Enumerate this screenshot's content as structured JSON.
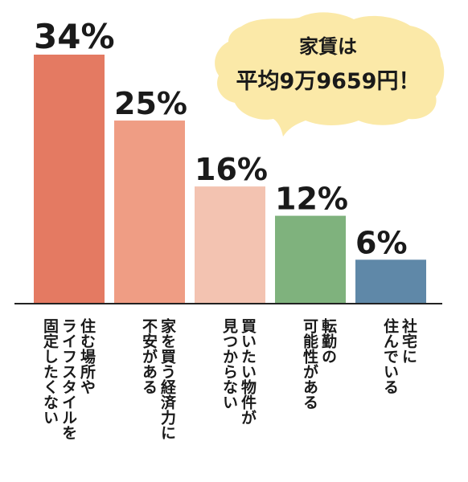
{
  "chart_data": {
    "type": "bar",
    "categories": [
      "住む場所やライフスタイルを固定したくない",
      "家を買う経済力に不安がある",
      "買いたい物件が見つからない",
      "転勤の可能性がある",
      "社宅に住んでいる"
    ],
    "category_lines": [
      [
        "住む場所や",
        "ライフスタイルを",
        "固定したくない"
      ],
      [
        "家を買う経済力に",
        "不安がある"
      ],
      [
        "買いたい物件が",
        "見つからない"
      ],
      [
        "転勤の",
        "可能性がある"
      ],
      [
        "社宅に",
        "住んでいる"
      ]
    ],
    "values": [
      34,
      25,
      16,
      12,
      6
    ],
    "value_labels": [
      "34%",
      "25%",
      "16%",
      "12%",
      "6%"
    ],
    "colors": [
      "#e47a62",
      "#ef9d84",
      "#f3c3b1",
      "#7fb27d",
      "#5f88a8"
    ],
    "ylim": [
      0,
      34
    ],
    "grid": false,
    "annotation": {
      "line1": "家賃は",
      "line2": "平均9万9659円！",
      "bubble_color": "#fbe9a8"
    }
  }
}
